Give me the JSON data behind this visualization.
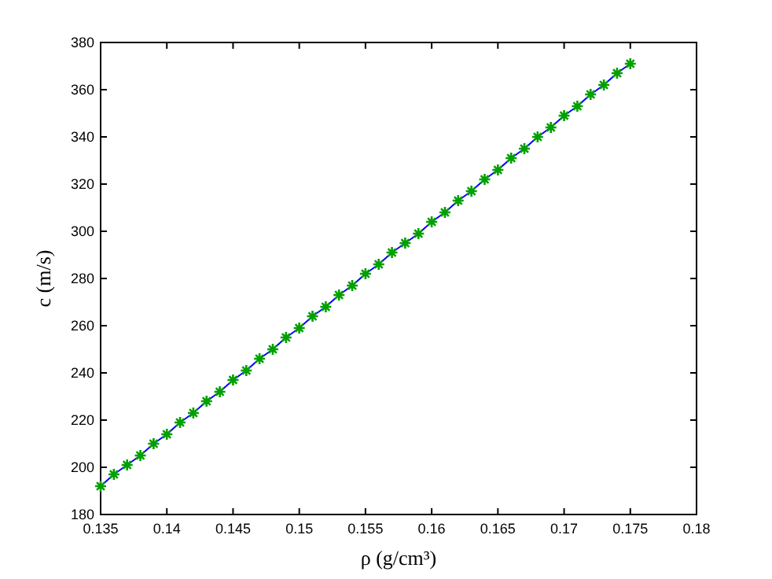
{
  "chart_data": {
    "type": "line",
    "xlabel": "ρ  (g/cm³)",
    "ylabel": "c  (m/s)",
    "x": [
      0.135,
      0.136,
      0.137,
      0.138,
      0.139,
      0.14,
      0.141,
      0.142,
      0.143,
      0.144,
      0.145,
      0.146,
      0.147,
      0.148,
      0.149,
      0.15,
      0.151,
      0.152,
      0.153,
      0.154,
      0.155,
      0.156,
      0.157,
      0.158,
      0.159,
      0.16,
      0.161,
      0.162,
      0.163,
      0.164,
      0.165,
      0.166,
      0.167,
      0.168,
      0.169,
      0.17,
      0.171,
      0.172,
      0.173,
      0.174,
      0.175
    ],
    "series": [
      {
        "color": "#0000ff",
        "marker": "none",
        "values": [
          192,
          197,
          201,
          205,
          210,
          214,
          219,
          223,
          228,
          232,
          237,
          241,
          246,
          250,
          255,
          259,
          264,
          268,
          273,
          277,
          282,
          286,
          291,
          295,
          299,
          304,
          308,
          313,
          317,
          322,
          326,
          331,
          335,
          340,
          344,
          349,
          353,
          358,
          362,
          367,
          371
        ]
      },
      {
        "type": "scatter",
        "color": "#00a000",
        "marker": "cross",
        "values": [
          192,
          197,
          201,
          205,
          210,
          214,
          219,
          223,
          228,
          232,
          237,
          241,
          246,
          250,
          255,
          259,
          264,
          268,
          273,
          277,
          282,
          286,
          291,
          295,
          299,
          304,
          308,
          313,
          317,
          322,
          326,
          331,
          335,
          340,
          344,
          349,
          353,
          358,
          362,
          367,
          371
        ]
      }
    ],
    "xlim": [
      0.135,
      0.18
    ],
    "xticks": [
      0.135,
      0.14,
      0.145,
      0.15,
      0.155,
      0.16,
      0.165,
      0.17,
      0.175,
      0.18
    ],
    "ylim": [
      180,
      380
    ],
    "yticks": [
      180,
      200,
      220,
      240,
      260,
      280,
      300,
      320,
      340,
      360,
      380
    ],
    "grid": false
  }
}
